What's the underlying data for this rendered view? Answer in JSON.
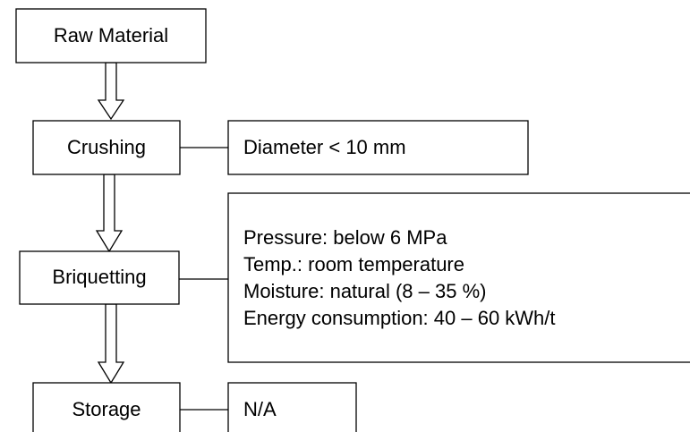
{
  "nodes": [
    {
      "label": "Raw Material"
    },
    {
      "label": "Crushing"
    },
    {
      "label": "Briquetting"
    },
    {
      "label": "Storage"
    }
  ],
  "notes": [
    {
      "lines": [
        "Diameter < 10 mm"
      ]
    },
    {
      "lines": [
        "Pressure: below 6 MPa",
        "Temp.: room temperature",
        "Moisture: natural (8 – 35 %)",
        "Energy consumption: 40 – 60 kWh/t"
      ]
    },
    {
      "lines": [
        "N/A"
      ]
    }
  ]
}
